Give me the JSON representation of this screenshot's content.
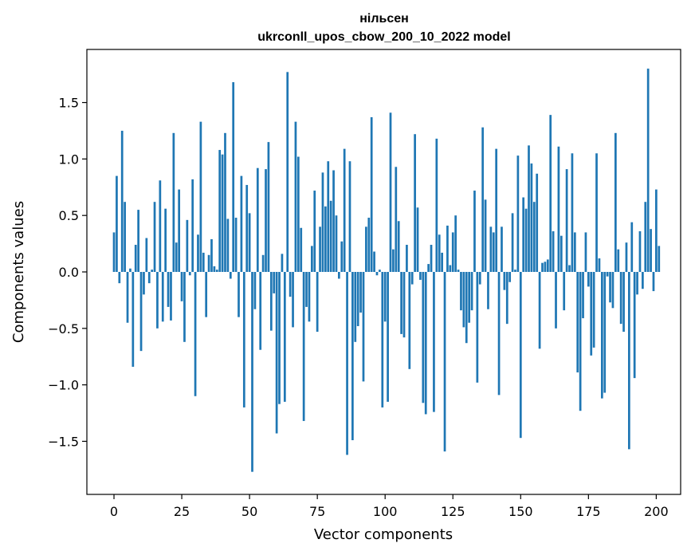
{
  "chart_data": {
    "type": "bar",
    "title_line1": "нільсен",
    "title_line2": "ukrconll_upos_cbow_200_10_2022 model",
    "xlabel": "Vector components",
    "ylabel": "Components values",
    "xlim": [
      -10,
      209
    ],
    "ylim": [
      -1.97,
      1.97
    ],
    "xticks": [
      0,
      25,
      50,
      75,
      100,
      125,
      150,
      175,
      200
    ],
    "yticks": [
      -1.5,
      -1.0,
      -0.5,
      0.0,
      0.5,
      1.0,
      1.5
    ],
    "ytick_labels": [
      "−1.5",
      "−1.0",
      "−0.5",
      "0.0",
      "0.5",
      "1.0",
      "1.5"
    ],
    "bar_color": "#1f77b4",
    "grid": false,
    "values": [
      0.35,
      0.85,
      -0.1,
      1.25,
      0.62,
      -0.45,
      0.03,
      -0.84,
      0.24,
      0.55,
      -0.7,
      -0.2,
      0.3,
      -0.1,
      0.02,
      0.62,
      -0.5,
      0.81,
      -0.44,
      0.56,
      -0.31,
      -0.43,
      1.23,
      0.26,
      0.73,
      -0.26,
      -0.62,
      0.46,
      -0.03,
      0.82,
      -1.1,
      0.33,
      1.33,
      0.17,
      -0.4,
      0.15,
      0.29,
      0.05,
      0.02,
      1.08,
      1.04,
      1.23,
      0.47,
      -0.06,
      1.68,
      0.48,
      -0.4,
      0.85,
      -1.2,
      0.77,
      0.52,
      -1.77,
      -0.33,
      0.92,
      -0.69,
      0.15,
      0.91,
      1.15,
      -0.52,
      -0.19,
      -1.43,
      -1.17,
      0.16,
      -1.15,
      1.77,
      -0.22,
      -0.49,
      1.33,
      1.02,
      0.39,
      -1.32,
      -0.31,
      -0.44,
      0.23,
      0.72,
      -0.53,
      0.4,
      0.88,
      0.58,
      0.98,
      0.63,
      0.9,
      0.5,
      -0.06,
      0.27,
      1.09,
      -1.62,
      0.98,
      -1.49,
      -0.62,
      -0.48,
      -0.36,
      -0.97,
      0.4,
      0.48,
      1.37,
      0.18,
      -0.03,
      0.02,
      -1.2,
      -0.44,
      -1.15,
      1.41,
      0.2,
      0.93,
      0.45,
      -0.55,
      -0.58,
      0.24,
      -0.86,
      -0.11,
      1.22,
      0.57,
      -0.07,
      -1.16,
      -1.26,
      0.07,
      0.24,
      -1.24,
      1.18,
      0.33,
      0.17,
      -1.59,
      0.41,
      0.06,
      0.35,
      0.5,
      0.02,
      -0.34,
      -0.49,
      -0.63,
      -0.45,
      -0.34,
      0.72,
      -0.98,
      -0.11,
      1.28,
      0.64,
      -0.33,
      0.4,
      0.35,
      1.09,
      -1.09,
      0.4,
      -0.16,
      -0.46,
      -0.09,
      0.52,
      0.02,
      1.03,
      -1.47,
      0.66,
      0.56,
      1.12,
      0.96,
      0.62,
      0.87,
      -0.68,
      0.08,
      0.09,
      0.11,
      1.39,
      0.36,
      -0.5,
      1.11,
      0.32,
      -0.34,
      0.91,
      0.06,
      1.05,
      0.35,
      -0.89,
      -1.23,
      -0.41,
      0.35,
      -0.13,
      -0.74,
      -0.67,
      1.05,
      0.12,
      -1.12,
      -1.07,
      -0.04,
      -0.27,
      -0.32,
      1.23,
      0.2,
      -0.46,
      -0.53,
      0.26,
      -1.57,
      0.44,
      -0.94,
      -0.2,
      0.36,
      -0.15,
      0.62,
      1.8,
      0.38,
      -0.17,
      0.73,
      0.23
    ]
  }
}
